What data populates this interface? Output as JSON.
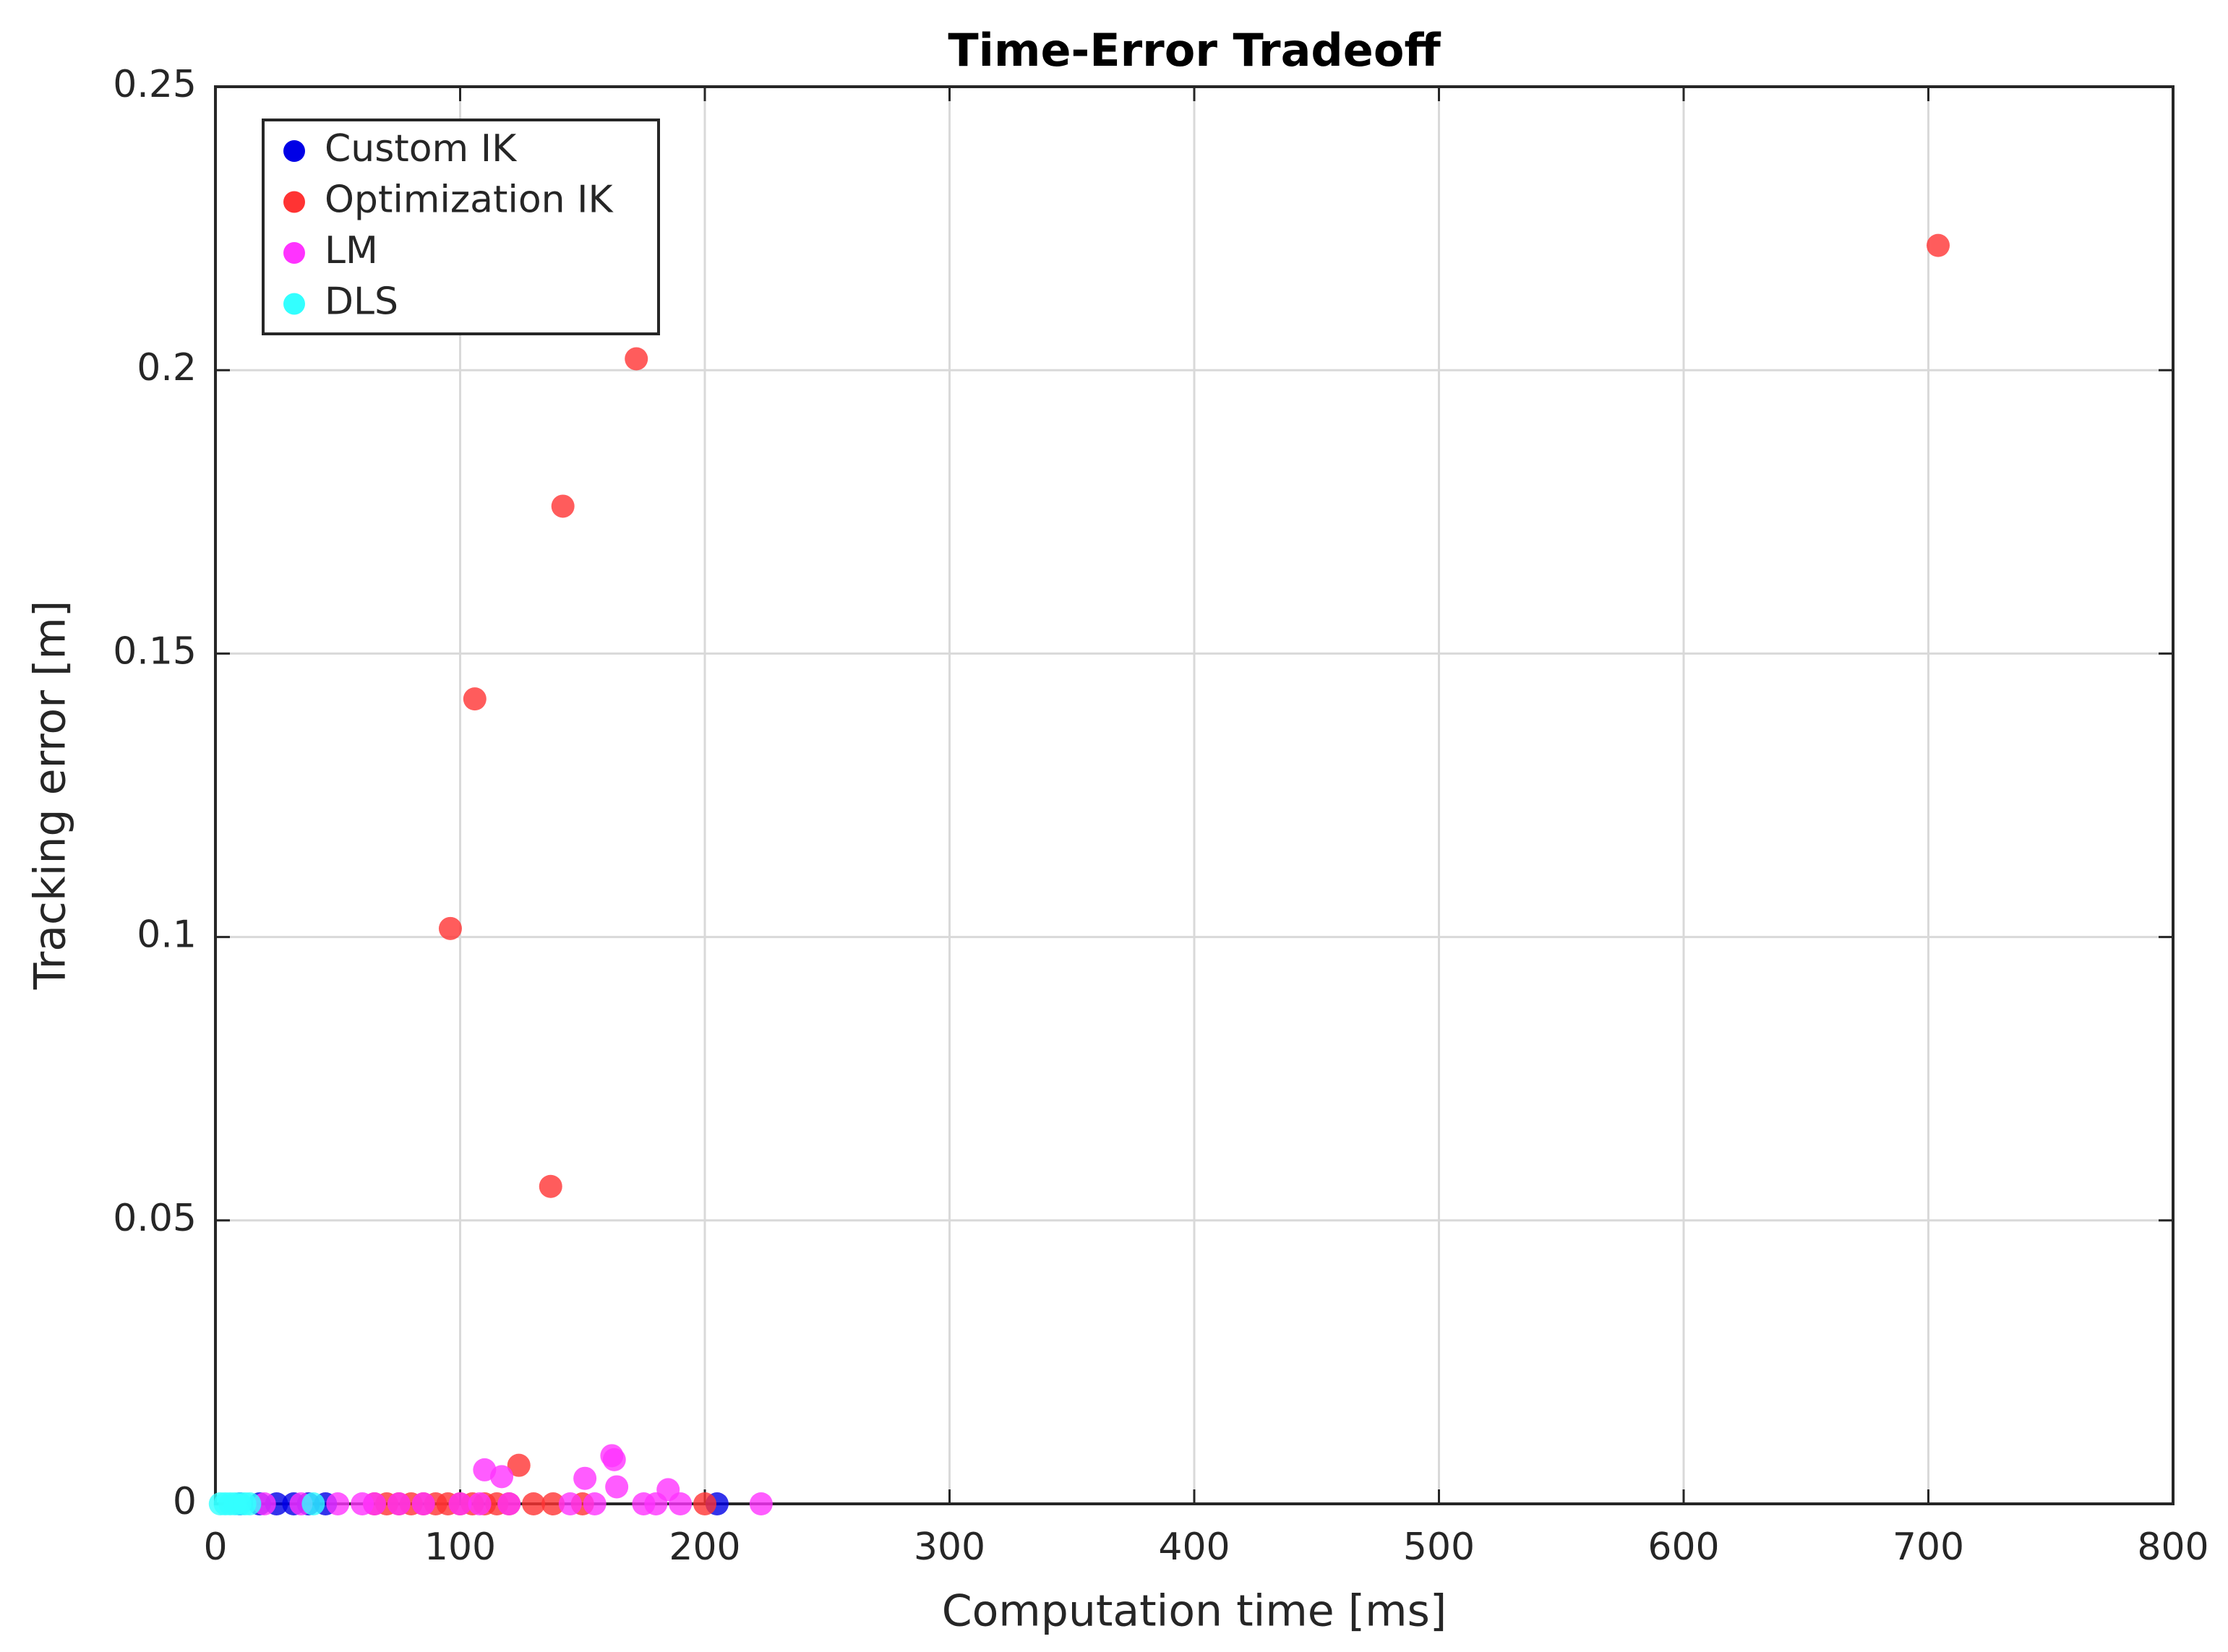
{
  "chart_data": {
    "type": "scatter",
    "title": "Time-Error Tradeoff",
    "xlabel": "Computation time [ms]",
    "ylabel": "Tracking error [m]",
    "xlim": [
      0,
      800
    ],
    "xticks": [
      0,
      100,
      200,
      300,
      400,
      500,
      600,
      700,
      800
    ],
    "ylim": [
      0,
      0.25
    ],
    "yticks": [
      0,
      0.05,
      0.1,
      0.15,
      0.2,
      0.25
    ],
    "grid": true,
    "legend": "upper-left",
    "series": [
      {
        "name": "Custom IK",
        "color": "#0000e6",
        "x": [
          10,
          18,
          25,
          32,
          38,
          45,
          205
        ],
        "values": [
          0,
          0,
          0,
          0,
          0,
          0,
          0
        ]
      },
      {
        "name": "Optimization IK",
        "color": "#ff3333",
        "x": [
          96,
          106,
          142,
          172,
          704,
          137,
          124,
          65,
          70,
          75,
          80,
          85,
          90,
          95,
          100,
          105,
          110,
          115,
          120,
          130,
          138,
          150,
          200
        ],
        "values": [
          0.1015,
          0.142,
          0.176,
          0.202,
          0.222,
          0.056,
          0.0068,
          0,
          0,
          0,
          0,
          0,
          0,
          0,
          0,
          0,
          0,
          0,
          0,
          0,
          0,
          0,
          0
        ]
      },
      {
        "name": "LM",
        "color": "#ff33ff",
        "x": [
          110,
          117,
          151,
          162,
          163,
          164,
          185,
          223,
          20,
          35,
          50,
          60,
          65,
          75,
          85,
          100,
          108,
          120,
          145,
          155,
          175,
          180,
          190
        ],
        "values": [
          0.006,
          0.0048,
          0.0045,
          0.0085,
          0.0078,
          0.003,
          0.0025,
          0,
          0,
          0,
          0,
          0,
          0,
          0,
          0,
          0,
          0,
          0,
          0,
          0,
          0,
          0,
          0
        ]
      },
      {
        "name": "DLS",
        "color": "#33ffff",
        "x": [
          2,
          4,
          6,
          8,
          10,
          12,
          14,
          40
        ],
        "values": [
          0,
          0,
          0,
          0,
          0,
          0,
          0,
          0
        ]
      }
    ]
  }
}
